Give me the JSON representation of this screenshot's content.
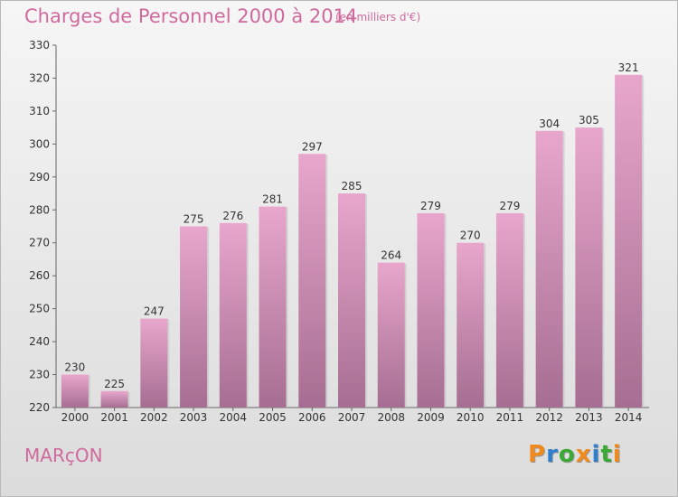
{
  "chart_data": {
    "type": "bar",
    "title": "Charges de Personnel 2000 à 2014",
    "unit_note": "(en milliers d'€)",
    "categories": [
      "2000",
      "2001",
      "2002",
      "2003",
      "2004",
      "2005",
      "2006",
      "2007",
      "2008",
      "2009",
      "2010",
      "2011",
      "2012",
      "2013",
      "2014"
    ],
    "values": [
      230,
      225,
      247,
      275,
      276,
      281,
      297,
      285,
      264,
      279,
      270,
      279,
      304,
      305,
      321
    ],
    "ylim": [
      220,
      330
    ],
    "yticks": [
      220,
      230,
      240,
      250,
      260,
      270,
      280,
      290,
      300,
      310,
      320,
      330
    ],
    "grid": false,
    "bar_color_top": "#e8a6cc",
    "bar_color_bottom": "#a66e92"
  },
  "footer": {
    "commune": "MARçON",
    "logo_text": "Proxiti",
    "logo_colors": [
      "#f08a1d",
      "#2f7fd0",
      "#3aaa35",
      "#f08a1d",
      "#2f7fd0",
      "#3aaa35",
      "#f08a1d"
    ]
  }
}
